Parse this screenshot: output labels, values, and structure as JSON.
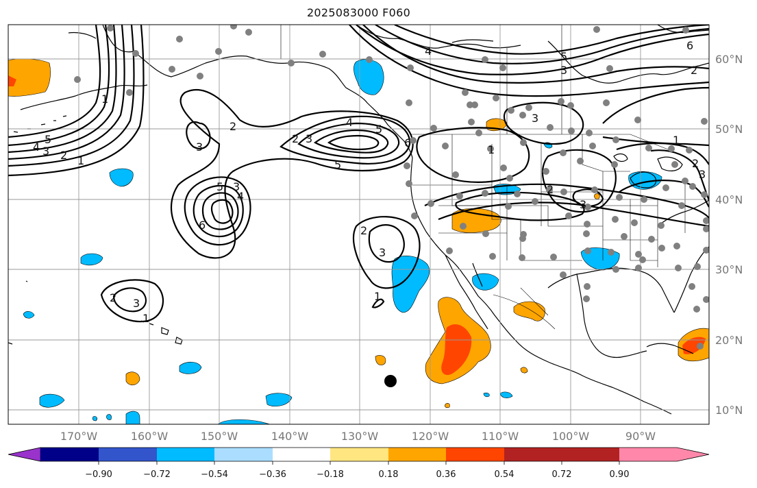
{
  "title": "2025083000 F060",
  "lon_labels": [
    "170°W",
    "160°W",
    "150°W",
    "140°W",
    "130°W",
    "120°W",
    "110°W",
    "100°W",
    "90°W"
  ],
  "lat_labels": [
    "60°N",
    "50°N",
    "40°N",
    "30°N",
    "20°N",
    "10°N"
  ],
  "colorbar": {
    "labels": [
      "−0.90",
      "−0.72",
      "−0.54",
      "−0.36",
      "−0.18",
      "0.18",
      "0.36",
      "0.54",
      "0.72",
      "0.90"
    ],
    "colors": [
      "#9933cc",
      "#000088",
      "#3355cc",
      "#00bbff",
      "#aaddff",
      "#ffffff",
      "#ffe680",
      "#ffa500",
      "#ff4500",
      "#b22222",
      "#ff88aa"
    ]
  },
  "contour_labels": [
    "5",
    "4",
    "3",
    "2",
    "1",
    "2",
    "3",
    "5",
    "6",
    "3",
    "4",
    "5",
    "2",
    "3",
    "4",
    "5",
    "6",
    "2",
    "3",
    "1",
    "2",
    "3",
    "1",
    "4",
    "5",
    "3",
    "2",
    "6",
    "1",
    "3",
    "2",
    "3",
    "1",
    "2",
    "3",
    "1"
  ],
  "colors": {
    "positive_low": "#ffa500",
    "positive_high": "#ff4500",
    "negative": "#00bbff",
    "station": "#808080",
    "grid": "#999999"
  }
}
